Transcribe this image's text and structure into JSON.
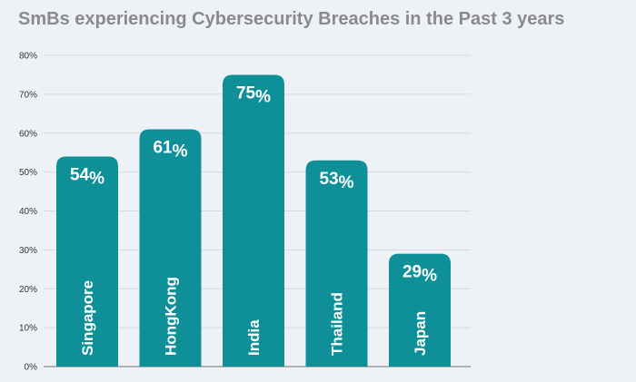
{
  "chart_data": {
    "type": "bar",
    "title": "SmBs experiencing Cybersecurity Breaches in the Past 3 years",
    "categories": [
      "Singapore",
      "HongKong",
      "India",
      "Thailand",
      "Japan"
    ],
    "values": [
      54,
      61,
      75,
      53,
      29
    ],
    "value_labels": [
      "54",
      "61",
      "75",
      "53",
      "29"
    ],
    "value_suffix": "%",
    "ylim": [
      0,
      80
    ],
    "yticks": [
      "0%",
      "10%",
      "20%",
      "30%",
      "40%",
      "50%",
      "60%",
      "70%",
      "80%"
    ],
    "grid": true,
    "bar_color": "#0f9099",
    "xlabel": "",
    "ylabel": ""
  }
}
